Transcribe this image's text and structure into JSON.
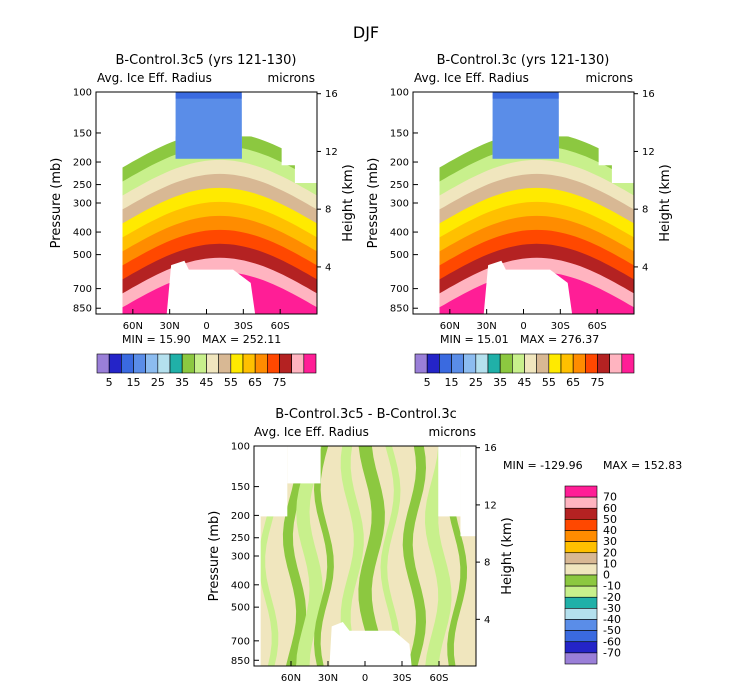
{
  "suptitle": "DJF",
  "colors": {
    "abs_palette": [
      "#9a7fd8",
      "#2424c8",
      "#3a6ae0",
      "#5a8de8",
      "#8cbcf0",
      "#b4e0ee",
      "#20b0a8",
      "#8cc840",
      "#c8f08c",
      "#f0e6be",
      "#d8b894",
      "#ffea00",
      "#ffc000",
      "#ff8c00",
      "#ff4800",
      "#b42222",
      "#ffb4c0",
      "#ff1e96"
    ],
    "diff_palette": [
      "#9a7fd8",
      "#2424c8",
      "#3a6ae0",
      "#5a8de8",
      "#b4e0ee",
      "#20b0a8",
      "#c8f08c",
      "#8cc840",
      "#f0e6be",
      "#d8b894",
      "#ffc000",
      "#ff8c00",
      "#ff4800",
      "#b42222",
      "#ffb4c0",
      "#ff1e96"
    ]
  },
  "chart_data": [
    {
      "type": "contour",
      "title": "B-Control.3c5 (yrs 121-130)",
      "left_label": "Avg. Ice Eff. Radius",
      "right_label": "microns",
      "ylabel": "Pressure (mb)",
      "ylabel_right": "Height (km)",
      "xticks": [
        "60N",
        "30N",
        "0",
        "30S",
        "60S"
      ],
      "x_values": [
        60,
        30,
        0,
        -30,
        -60
      ],
      "xlim": [
        90,
        -90
      ],
      "yticks": [
        "100",
        "150",
        "200",
        "250",
        "300",
        "400",
        "500",
        "700",
        "850"
      ],
      "p_values": [
        100,
        150,
        200,
        250,
        300,
        400,
        500,
        700,
        850
      ],
      "ylim": [
        100,
        900
      ],
      "height_ticks": [
        "16",
        "12",
        "8",
        "4"
      ],
      "height_values": [
        16,
        12,
        8,
        4
      ],
      "min_text": "MIN =   15.90",
      "max_text": "MAX =  252.11",
      "min": 15.9,
      "max": 252.11,
      "colorbar_labels": [
        "5",
        "15",
        "25",
        "35",
        "45",
        "55",
        "65",
        "75"
      ],
      "colorbar_levels": [
        5,
        10,
        15,
        20,
        25,
        30,
        35,
        40,
        45,
        50,
        55,
        60,
        65,
        70,
        75
      ]
    },
    {
      "type": "contour",
      "title": "B-Control.3c (yrs 121-130)",
      "left_label": "Avg. Ice Eff. Radius",
      "right_label": "microns",
      "ylabel": "Pressure (mb)",
      "ylabel_right": "Height (km)",
      "xticks": [
        "60N",
        "30N",
        "0",
        "30S",
        "60S"
      ],
      "x_values": [
        60,
        30,
        0,
        -30,
        -60
      ],
      "xlim": [
        90,
        -90
      ],
      "yticks": [
        "100",
        "150",
        "200",
        "250",
        "300",
        "400",
        "500",
        "700",
        "850"
      ],
      "p_values": [
        100,
        150,
        200,
        250,
        300,
        400,
        500,
        700,
        850
      ],
      "ylim": [
        100,
        900
      ],
      "height_ticks": [
        "16",
        "12",
        "8",
        "4"
      ],
      "height_values": [
        16,
        12,
        8,
        4
      ],
      "min_text": "MIN =   15.01",
      "max_text": "MAX =  276.37",
      "min": 15.01,
      "max": 276.37,
      "colorbar_labels": [
        "5",
        "15",
        "25",
        "35",
        "45",
        "55",
        "65",
        "75"
      ],
      "colorbar_levels": [
        5,
        10,
        15,
        20,
        25,
        30,
        35,
        40,
        45,
        50,
        55,
        60,
        65,
        70,
        75
      ]
    },
    {
      "type": "contour",
      "title": "B-Control.3c5 - B-Control.3c",
      "left_label": "Avg. Ice Eff. Radius",
      "right_label": "microns",
      "ylabel": "Pressure (mb)",
      "ylabel_right": "Height (km)",
      "xticks": [
        "60N",
        "30N",
        "0",
        "30S",
        "60S"
      ],
      "x_values": [
        60,
        30,
        0,
        -30,
        -60
      ],
      "xlim": [
        90,
        -90
      ],
      "yticks": [
        "100",
        "150",
        "200",
        "250",
        "300",
        "400",
        "500",
        "700",
        "850"
      ],
      "p_values": [
        100,
        150,
        200,
        250,
        300,
        400,
        500,
        700,
        850
      ],
      "ylim": [
        100,
        900
      ],
      "height_ticks": [
        "16",
        "12",
        "8",
        "4"
      ],
      "height_values": [
        16,
        12,
        8,
        4
      ],
      "min_text": "MIN = -129.96",
      "max_text": "MAX = 152.83",
      "min": -129.96,
      "max": 152.83,
      "colorbar_labels": [
        "70",
        "60",
        "50",
        "40",
        "30",
        "20",
        "10",
        "0",
        "-10",
        "-20",
        "-30",
        "-40",
        "-50",
        "-60",
        "-70"
      ],
      "colorbar_levels": [
        70,
        60,
        50,
        40,
        30,
        20,
        10,
        0,
        -10,
        -20,
        -30,
        -40,
        -50,
        -60,
        -70
      ]
    }
  ]
}
